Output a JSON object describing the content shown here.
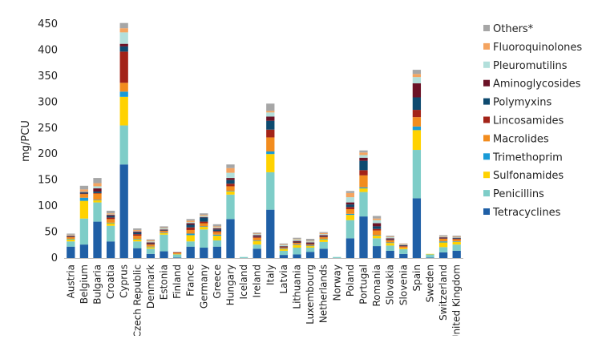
{
  "chart_data": {
    "type": "bar",
    "stacked": true,
    "ylabel": "mg/PCU",
    "xlabel": "",
    "ylim": [
      0,
      450
    ],
    "yticks": [
      0,
      50,
      100,
      150,
      200,
      250,
      300,
      350,
      400,
      450
    ],
    "grid": false,
    "legend_position": "right",
    "categories": [
      "Austria",
      "Belgium",
      "Bulgaria",
      "Croatia",
      "Cyprus",
      "Czech Republic",
      "Denmark",
      "Estonia",
      "Finland",
      "France",
      "Germany",
      "Greece",
      "Hungary",
      "Iceland",
      "Ireland",
      "Italy",
      "Latvia",
      "Lithuania",
      "Luxembourg",
      "Netherlands",
      "Norway",
      "Poland",
      "Portugal",
      "Romania",
      "Slovakia",
      "Slovenia",
      "Spain",
      "Sweden",
      "Switzerland",
      "United Kingdom"
    ],
    "series": [
      {
        "name": "Tetracyclines",
        "color": "#1f5fa6",
        "values": [
          22,
          26,
          70,
          32,
          180,
          19,
          8,
          13,
          1,
          22,
          20,
          22,
          75,
          0,
          18,
          93,
          6,
          7,
          12,
          18,
          0,
          38,
          80,
          23,
          14,
          8,
          115,
          1,
          11,
          14
        ]
      },
      {
        "name": "Penicillins",
        "color": "#7ecdc8",
        "values": [
          10,
          50,
          37,
          30,
          75,
          13,
          10,
          32,
          6,
          10,
          35,
          12,
          47,
          2,
          8,
          72,
          8,
          13,
          8,
          13,
          2,
          35,
          47,
          15,
          10,
          9,
          93,
          6,
          10,
          12
        ]
      },
      {
        "name": "Sulfonamides",
        "color": "#ffd200",
        "values": [
          4,
          34,
          4,
          5,
          55,
          4,
          3,
          3,
          1,
          12,
          5,
          9,
          6,
          0,
          7,
          35,
          3,
          5,
          3,
          5,
          0,
          10,
          7,
          5,
          5,
          2,
          38,
          1,
          9,
          5
        ]
      },
      {
        "name": "Trimethoprim",
        "color": "#1a9bd7",
        "values": [
          1,
          6,
          1,
          1,
          10,
          1,
          1,
          1,
          0,
          3,
          1,
          2,
          1,
          0,
          1,
          5,
          1,
          1,
          1,
          1,
          0,
          2,
          2,
          1,
          1,
          0,
          7,
          0,
          2,
          1
        ]
      },
      {
        "name": "Macrolides",
        "color": "#f28c1e",
        "values": [
          3,
          7,
          12,
          7,
          17,
          6,
          4,
          3,
          2,
          7,
          6,
          5,
          9,
          0,
          5,
          27,
          2,
          3,
          2,
          3,
          0,
          9,
          23,
          9,
          4,
          3,
          18,
          0,
          5,
          4
        ]
      },
      {
        "name": "Lincosamides",
        "color": "#a32318",
        "values": [
          1,
          1,
          1,
          3,
          60,
          3,
          1,
          1,
          1,
          5,
          3,
          2,
          5,
          0,
          2,
          15,
          1,
          1,
          1,
          1,
          0,
          4,
          10,
          3,
          1,
          1,
          14,
          0,
          1,
          1
        ]
      },
      {
        "name": "Polymyxins",
        "color": "#0e4a6f",
        "values": [
          1,
          2,
          3,
          3,
          10,
          3,
          1,
          1,
          0,
          5,
          8,
          3,
          7,
          0,
          1,
          17,
          1,
          1,
          1,
          1,
          0,
          5,
          18,
          5,
          1,
          1,
          24,
          0,
          1,
          1
        ]
      },
      {
        "name": "Aminoglycosides",
        "color": "#6b1226",
        "values": [
          1,
          1,
          6,
          2,
          5,
          2,
          2,
          1,
          0,
          3,
          1,
          2,
          4,
          0,
          2,
          8,
          1,
          2,
          2,
          2,
          0,
          4,
          6,
          6,
          2,
          1,
          27,
          0,
          1,
          1
        ]
      },
      {
        "name": "Pleuromutilins",
        "color": "#b2dfdb",
        "values": [
          1,
          1,
          4,
          1,
          22,
          1,
          2,
          2,
          0,
          2,
          2,
          2,
          10,
          0,
          2,
          8,
          2,
          3,
          2,
          2,
          0,
          10,
          5,
          6,
          2,
          1,
          12,
          0,
          1,
          1
        ]
      },
      {
        "name": "Fluoroquinolones",
        "color": "#f4a460",
        "values": [
          1,
          4,
          6,
          2,
          8,
          2,
          2,
          1,
          0,
          3,
          2,
          2,
          9,
          0,
          1,
          3,
          1,
          1,
          1,
          2,
          0,
          8,
          5,
          3,
          1,
          1,
          6,
          0,
          1,
          1
        ]
      },
      {
        "name": "Others*",
        "color": "#a6a6a6",
        "values": [
          2,
          7,
          10,
          5,
          10,
          3,
          2,
          3,
          1,
          3,
          3,
          4,
          7,
          0,
          2,
          14,
          2,
          2,
          4,
          2,
          0,
          4,
          4,
          5,
          2,
          1,
          8,
          0,
          2,
          2
        ]
      }
    ]
  }
}
